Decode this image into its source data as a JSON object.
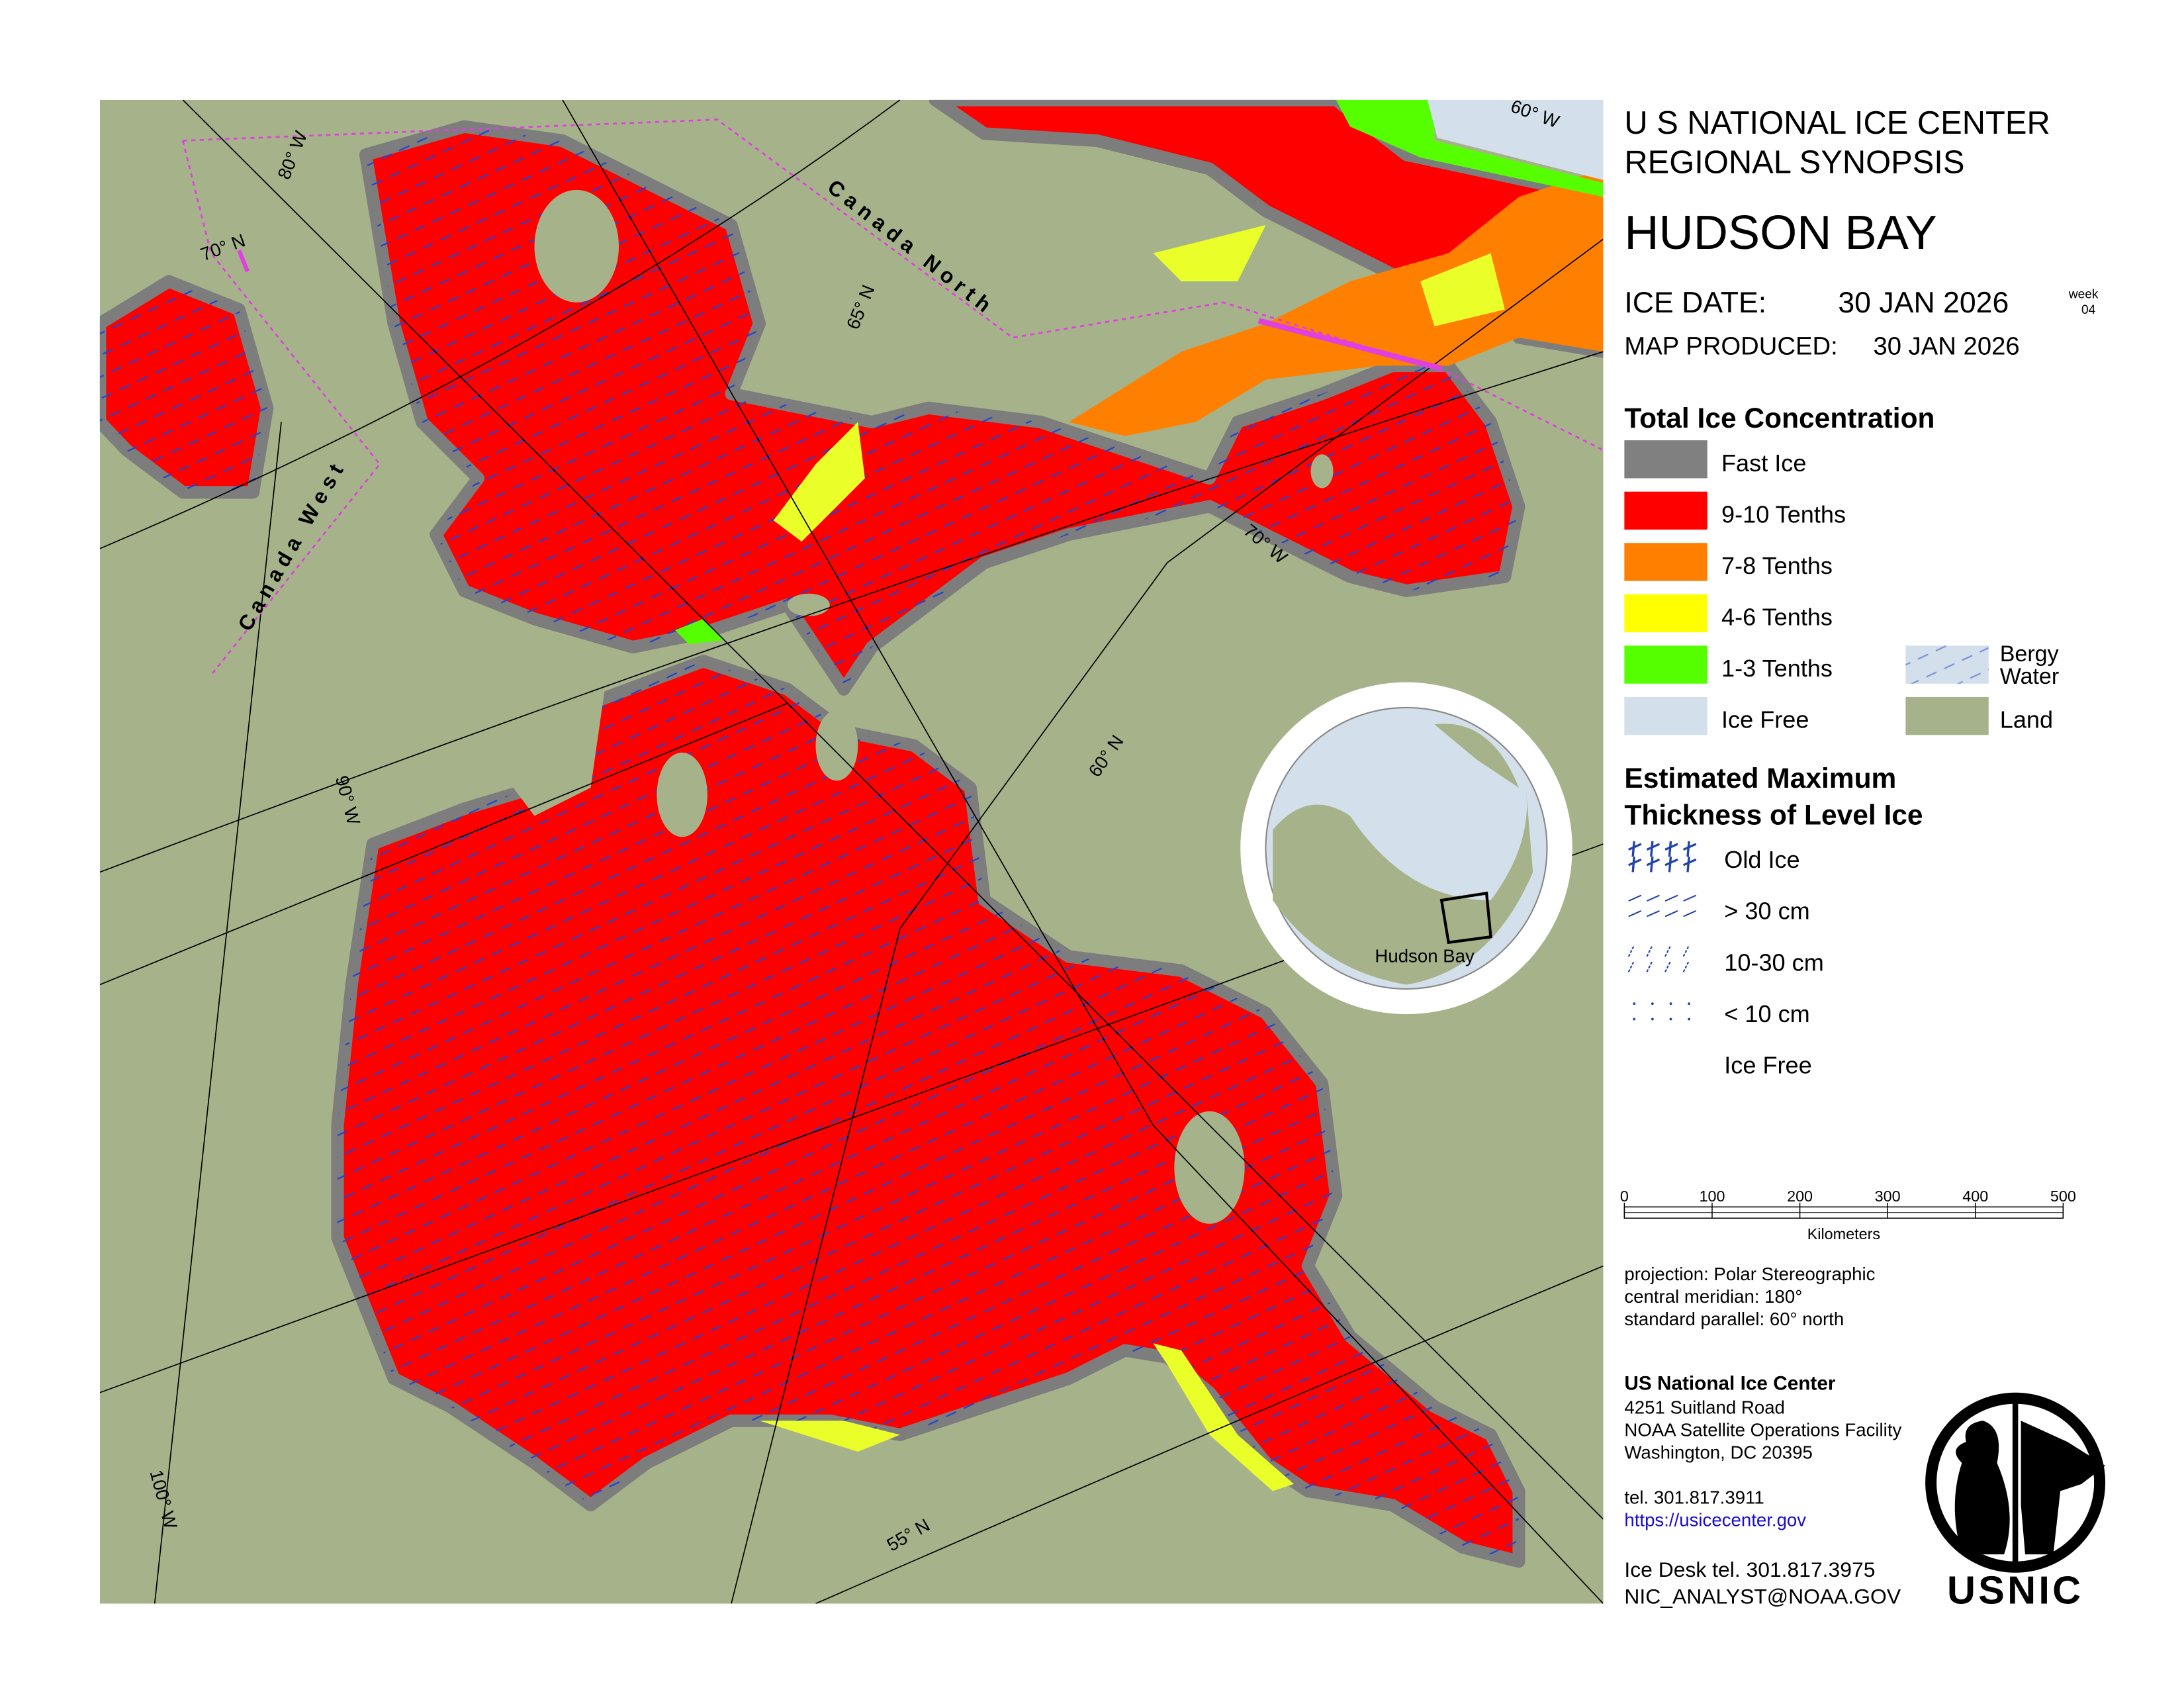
{
  "header": {
    "line1": "U S NATIONAL ICE CENTER",
    "line2": "REGIONAL SYNOPSIS",
    "region": "HUDSON BAY",
    "ice_date_label": "ICE DATE:",
    "ice_date": "30 JAN 2026",
    "week_label": "week",
    "week": "04",
    "produced_label": "MAP PRODUCED:",
    "produced": "30 JAN 2026"
  },
  "concentration_legend": {
    "title": "Total Ice Concentration",
    "items": [
      {
        "label": "Fast Ice",
        "color": "#808080"
      },
      {
        "label": "9-10 Tenths",
        "color": "#ff0000"
      },
      {
        "label": "7-8 Tenths",
        "color": "#ff7f00"
      },
      {
        "label": "4-6 Tenths",
        "color": "#ffff00"
      },
      {
        "label": "1-3 Tenths",
        "color": "#55ff00"
      },
      {
        "label": "Ice Free",
        "color": "#d3dfea"
      }
    ],
    "bergy_lines": [
      "Bergy",
      "Water"
    ],
    "land": {
      "label": "Land",
      "color": "#a6b38a"
    }
  },
  "thickness_legend": {
    "title_lines": [
      "Estimated Maximum",
      "Thickness of Level Ice"
    ],
    "items": [
      "Old Ice",
      "> 30 cm",
      "10-30 cm",
      "< 10 cm",
      "Ice Free"
    ]
  },
  "scale_bar": {
    "ticks": [
      0,
      100,
      200,
      300,
      400,
      500
    ],
    "unit": "Kilometers"
  },
  "projection": [
    "projection: Polar Stereographic",
    "central meridian: 180°",
    "standard parallel:  60° north"
  ],
  "contact": {
    "name": "US National Ice Center",
    "address": [
      "4251 Suitland Road",
      "NOAA Satellite Operations Facility",
      "Washington, DC  20395"
    ],
    "tel": "tel. 301.817.3911",
    "url": "https://usicecenter.gov",
    "desk": "Ice Desk tel. 301.817.3975",
    "email": "NIC_ANALYST@NOAA.GOV"
  },
  "logo": "USNIC",
  "map": {
    "graticule_labels": [
      "80° W",
      "70° N",
      "65° N",
      "60° W",
      "70° W",
      "60° N",
      "90° W",
      "100° W",
      "55° N"
    ],
    "regions": [
      "Canada North",
      "Canada West"
    ],
    "inset_label": "Hudson Bay"
  }
}
